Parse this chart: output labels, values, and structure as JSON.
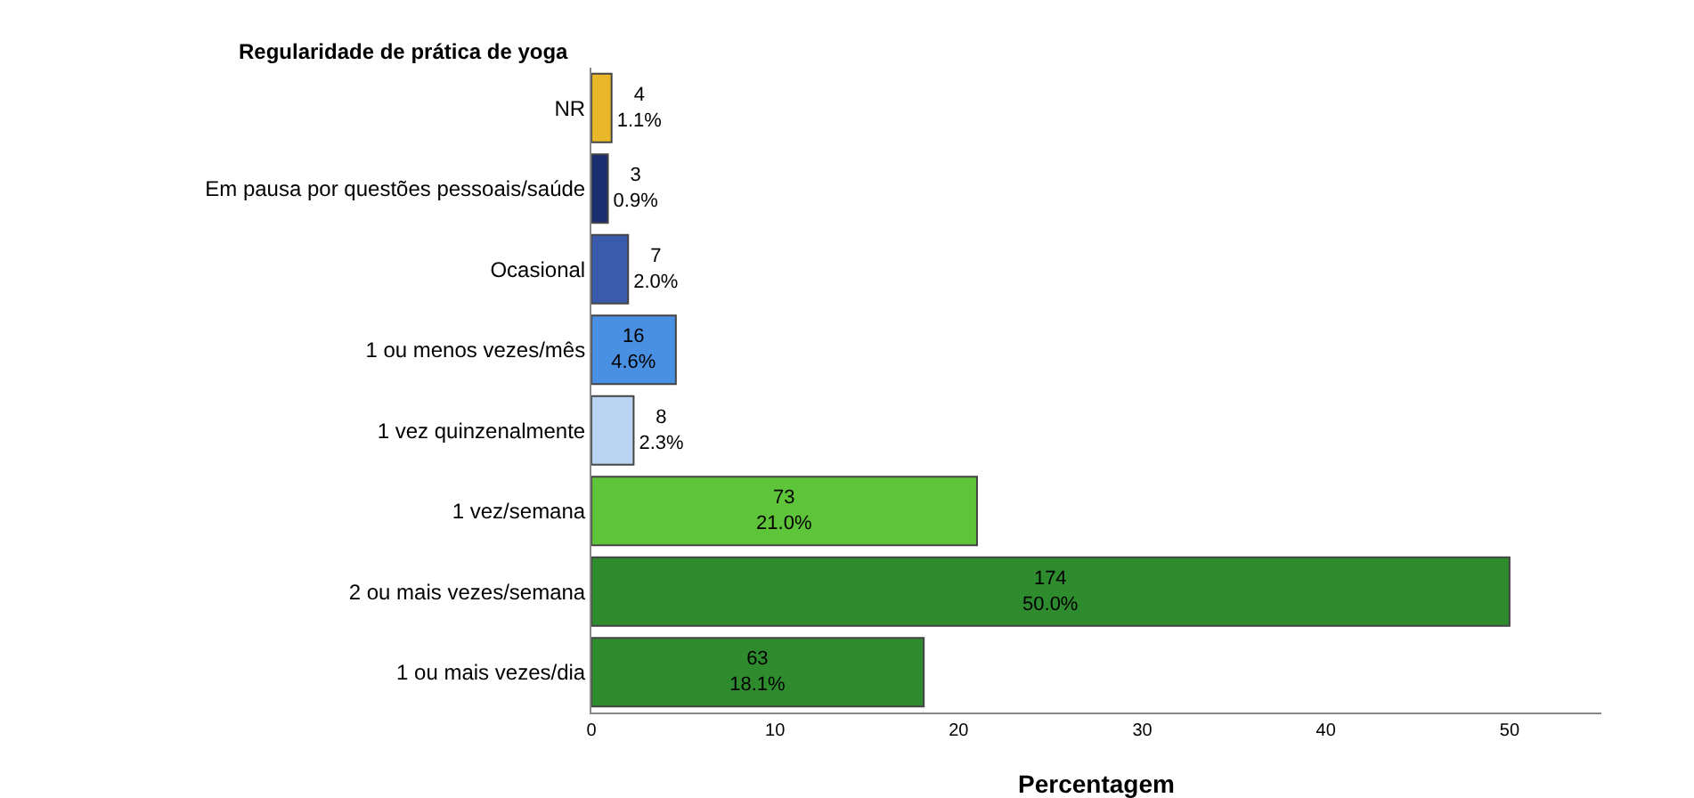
{
  "chart_data": {
    "type": "bar",
    "orientation": "horizontal",
    "ylabel": "Regularidade de prática de yoga",
    "xlabel": "Percentagem",
    "categories": [
      "NR",
      "Em pausa por questões pessoais/saúde",
      "Ocasional",
      "1 ou menos vezes/mês",
      "1 vez quinzenalmente",
      "1 vez/semana",
      "2 ou mais vezes/semana",
      "1 ou mais vezes/dia"
    ],
    "values": [
      1.1,
      0.9,
      2.0,
      4.6,
      2.3,
      21.0,
      50.0,
      18.1
    ],
    "value_labels": [
      "4\n1.1%",
      "3\n0.9%",
      "7\n2.0%",
      "16\n4.6%",
      "8\n2.3%",
      "73\n21.0%",
      "174\n50.0%",
      "63\n18.1%"
    ],
    "colors": [
      "#e8b82a",
      "#1a2d6e",
      "#3a5bab",
      "#4a90e2",
      "#b8d4f0",
      "#5ec43a",
      "#2e8b2e",
      "#2e8b2e"
    ],
    "xlim": [
      0,
      55
    ],
    "xticks": [
      0,
      10,
      20,
      30,
      40,
      50
    ],
    "grid": false,
    "legend": false
  }
}
